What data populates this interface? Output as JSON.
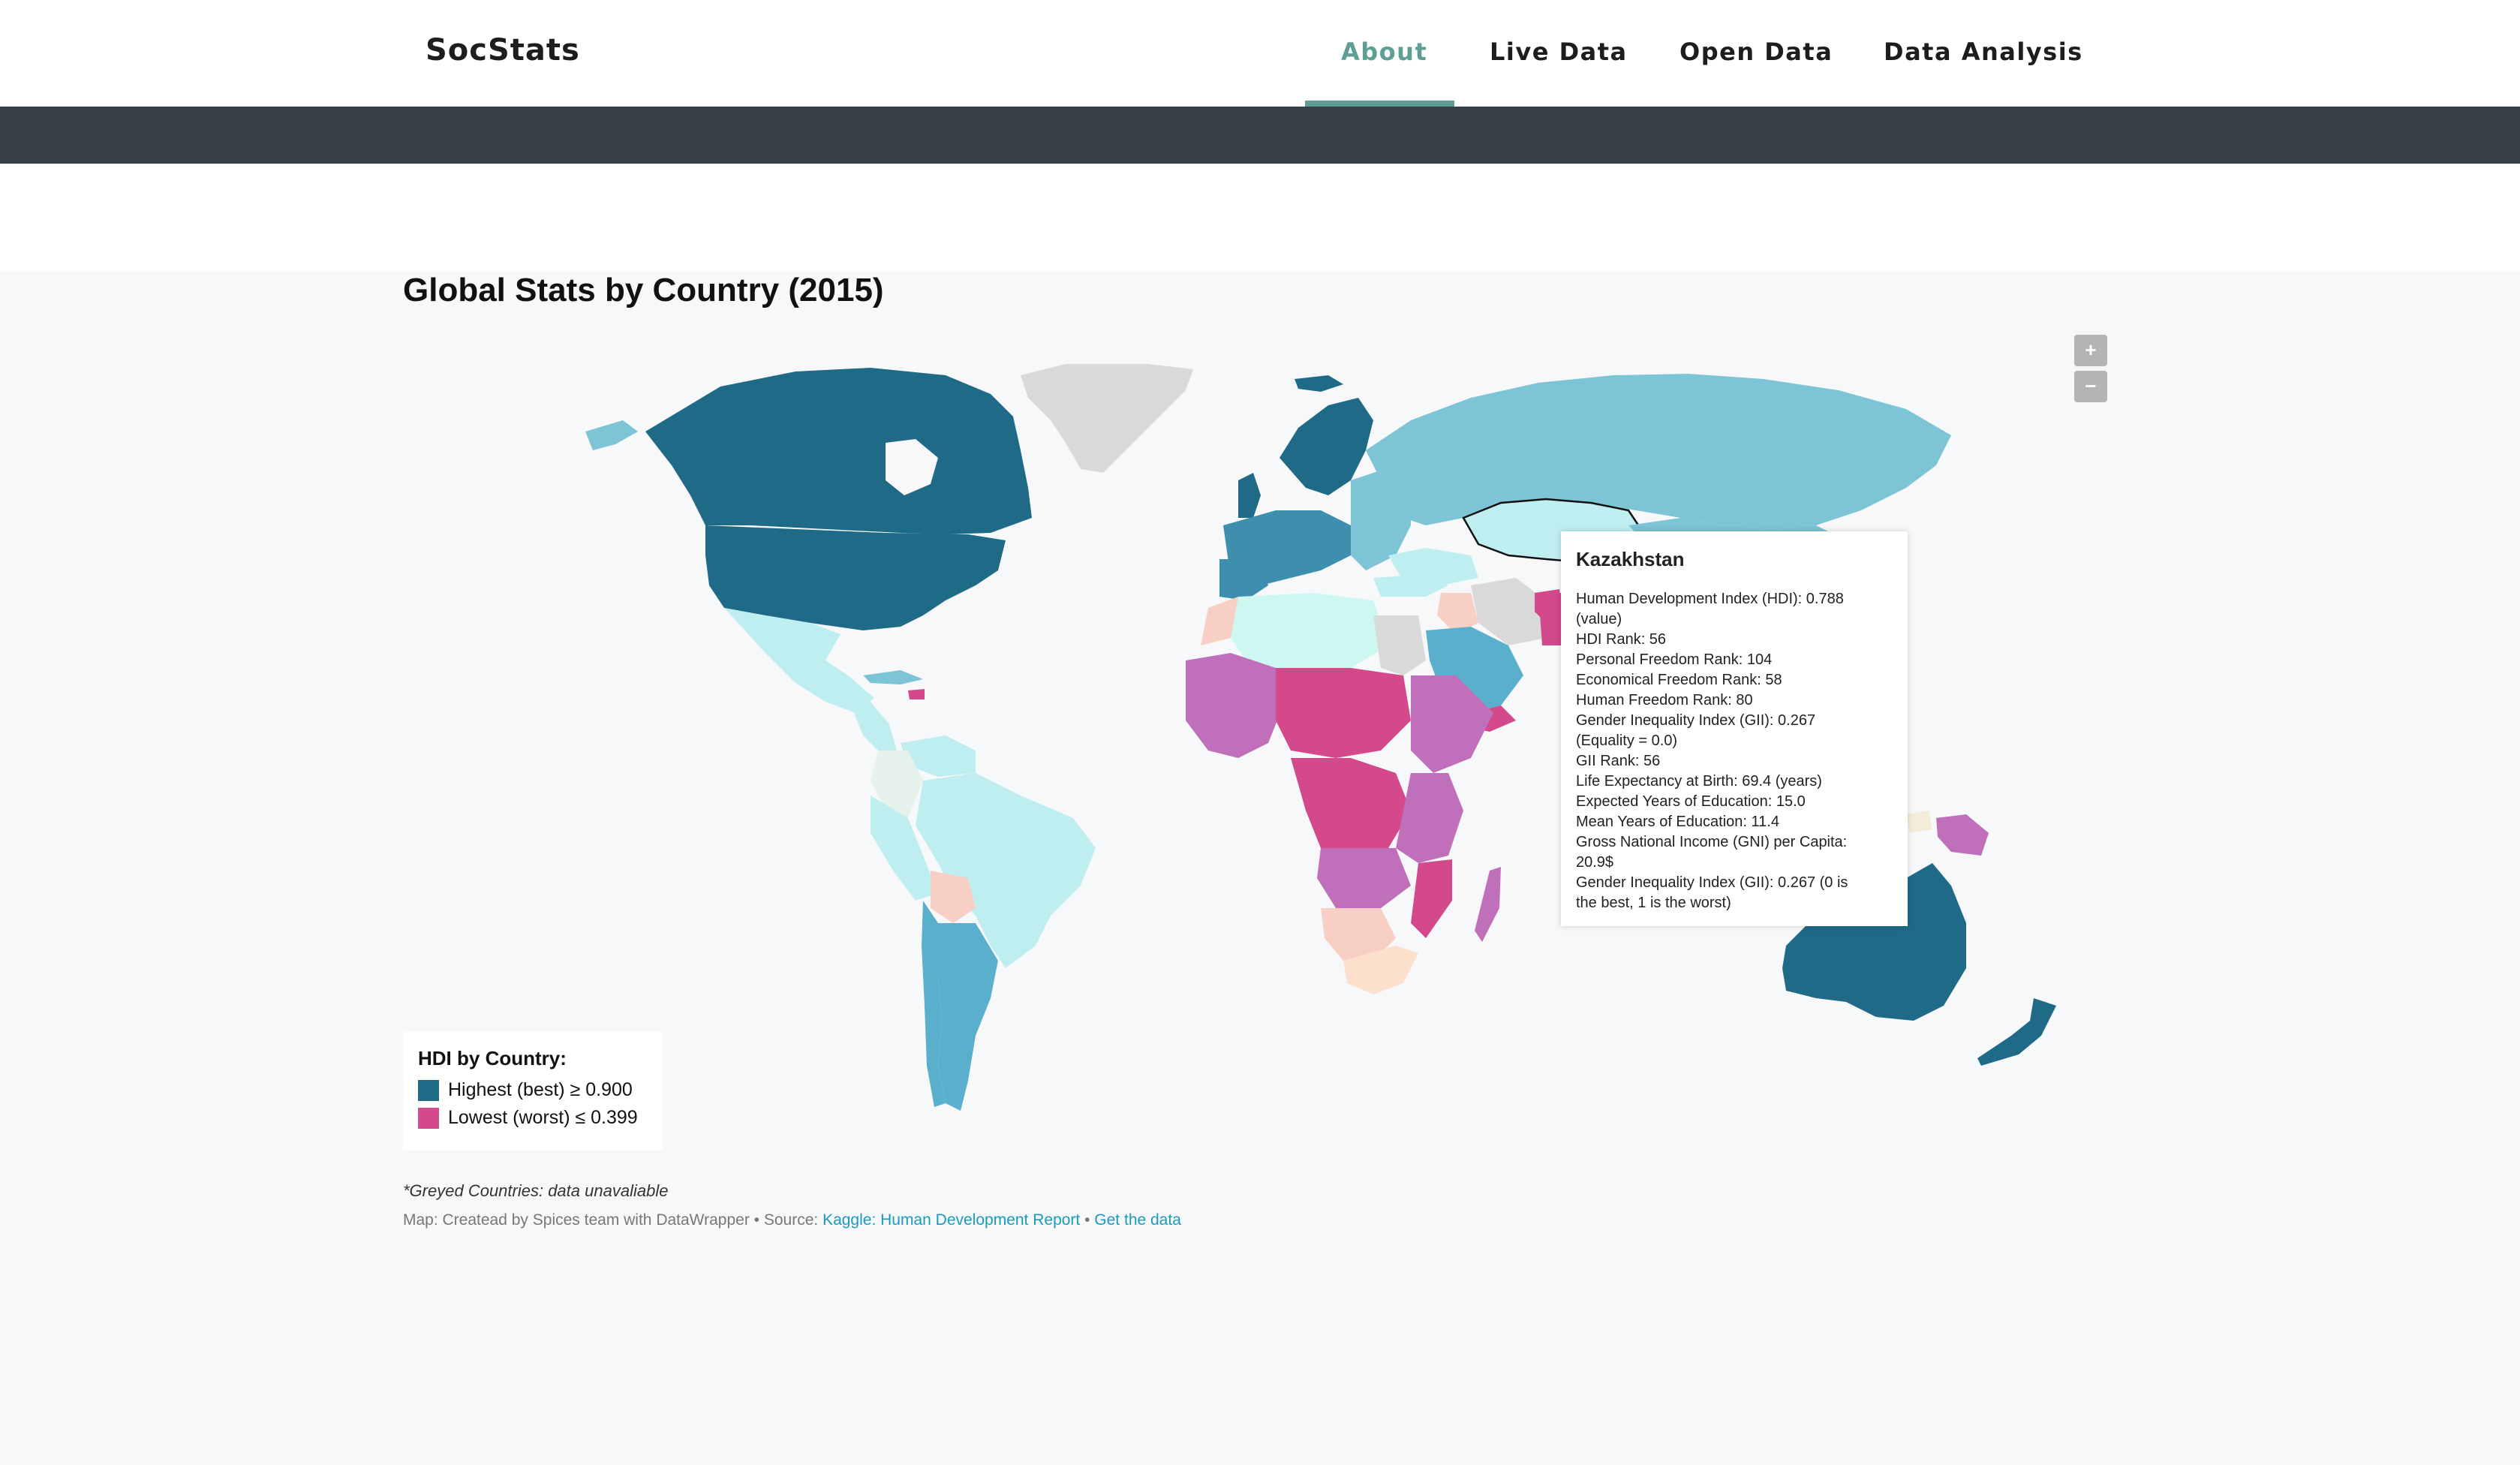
{
  "nav": {
    "brand": "SocStats",
    "links": [
      {
        "label": "About",
        "active": true
      },
      {
        "label": "Live Data",
        "active": false
      },
      {
        "label": "Open Data",
        "active": false
      },
      {
        "label": "Data Analysis",
        "active": false
      }
    ],
    "accent_color": "#5e9e94",
    "band_color": "#353f48"
  },
  "map": {
    "title": "Global Stats by Country (2015)",
    "zoom_in": "+",
    "zoom_out": "−",
    "colors": {
      "highest": "#1f6a87",
      "high": "#3d8fad",
      "upper_mid": "#7cc4d6",
      "mid": "#bfeef0",
      "low_mid": "#f7cfc4",
      "low": "#c06fbb",
      "lowest": "#d4488c",
      "unavailable": "#d9d9d9"
    },
    "tooltip": {
      "country": "Kazakhstan",
      "lines": [
        "Human Development Index (HDI): 0.788",
        "(value)",
        "HDI Rank: 56",
        "Personal Freedom Rank: 104",
        "Economical Freedom Rank: 58",
        "Human Freedom Rank: 80",
        "Gender Inequality Index (GII): 0.267",
        "(Equality = 0.0)",
        "GII Rank: 56",
        "Life Expectancy at Birth: 69.4 (years)",
        "Expected Years of Education: 15.0",
        "Mean Years of Education: 11.4",
        "Gross National Income (GNI) per Capita:",
        "20.9$",
        "Gender Inequality Index (GII): 0.267 (0 is",
        "the best, 1 is the worst)"
      ]
    },
    "legend": {
      "title": "HDI by Country:",
      "items": [
        {
          "label": "Highest (best) ≥ 0.900",
          "color": "#1f6a87"
        },
        {
          "label": "Lowest (worst) ≤ 0.399",
          "color": "#d4488c"
        }
      ]
    },
    "note": "*Greyed Countries: data unavaliable",
    "credit": {
      "prefix": "Map: Createad by Spices team with DataWrapper • Source: ",
      "source_link": "Kaggle: Human Development Report",
      "separator": " • ",
      "data_link": "Get the data"
    }
  }
}
